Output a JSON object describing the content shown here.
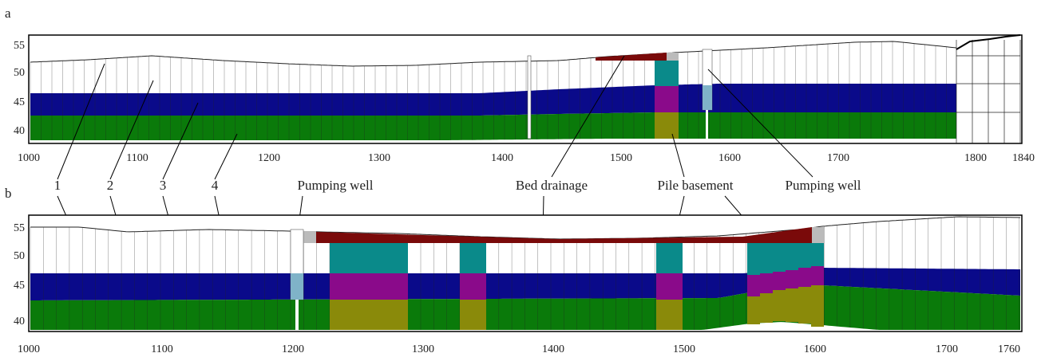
{
  "panels": {
    "a": {
      "label": "a",
      "x_ticks": [
        "1000",
        "1100",
        "1200",
        "1300",
        "1400",
        "1500",
        "1600",
        "1700",
        "1800",
        "1840"
      ],
      "y_ticks": [
        "55",
        "50",
        "45",
        "40"
      ]
    },
    "b": {
      "label": "b",
      "x_ticks": [
        "1000",
        "1100",
        "1200",
        "1300",
        "1400",
        "1500",
        "1600",
        "1700",
        "1760"
      ],
      "y_ticks": [
        "55",
        "50",
        "45",
        "40"
      ]
    }
  },
  "labels": {
    "n1": "1",
    "n2": "2",
    "n3": "3",
    "n4": "4",
    "pumping_well_b": "Pumping well",
    "bed_drainage": "Bed drainage",
    "pile_basement": "Pile basement",
    "pumping_well_a": "Pumping well"
  },
  "colors": {
    "layer1_fill": "#ffffff",
    "layer2_fill": "#ffffff",
    "layer3_fill": "#0a0a8a",
    "layer4_fill": "#0a7a0a",
    "drainage": "#7a0a0a",
    "pile_top": "#0a8a8a",
    "pile_mid": "#8a0a8a",
    "pile_bot": "#8a8a0a",
    "well": "#7fb3c8",
    "cell_line": "#333333"
  }
}
